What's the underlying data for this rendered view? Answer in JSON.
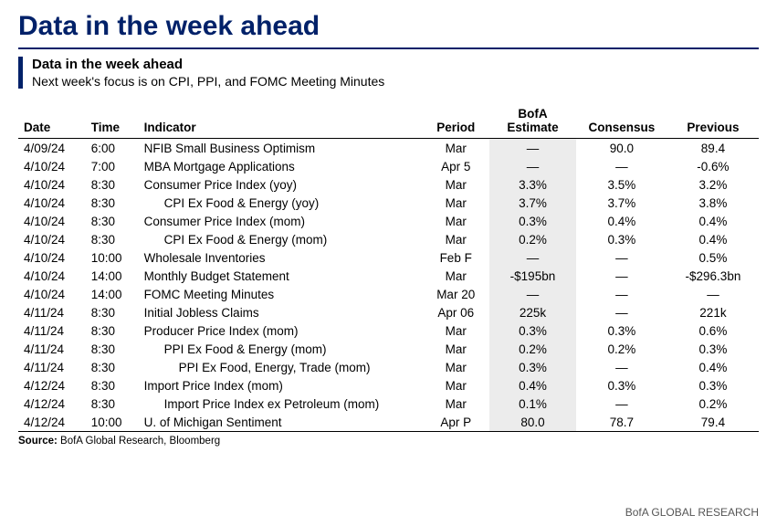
{
  "title": "Data in the week ahead",
  "subtitle": "Data in the week ahead",
  "tagline": "Next week's focus is on CPI, PPI, and FOMC Meeting Minutes",
  "columns": {
    "date": "Date",
    "time": "Time",
    "indicator": "Indicator",
    "period": "Period",
    "estimate_top": "BofA",
    "estimate_bot": "Estimate",
    "consensus": "Consensus",
    "previous": "Previous"
  },
  "rows": [
    {
      "date": "4/09/24",
      "time": "6:00",
      "indicator": "NFIB Small Business Optimism",
      "indent": 0,
      "period": "Mar",
      "estimate": "—",
      "consensus": "90.0",
      "previous": "89.4"
    },
    {
      "date": "4/10/24",
      "time": "7:00",
      "indicator": "MBA Mortgage Applications",
      "indent": 0,
      "period": "Apr 5",
      "estimate": "—",
      "consensus": "—",
      "previous": "-0.6%"
    },
    {
      "date": "4/10/24",
      "time": "8:30",
      "indicator": "Consumer Price Index (yoy)",
      "indent": 0,
      "period": "Mar",
      "estimate": "3.3%",
      "consensus": "3.5%",
      "previous": "3.2%"
    },
    {
      "date": "4/10/24",
      "time": "8:30",
      "indicator": "CPI Ex Food & Energy (yoy)",
      "indent": 1,
      "period": "Mar",
      "estimate": "3.7%",
      "consensus": "3.7%",
      "previous": "3.8%"
    },
    {
      "date": "4/10/24",
      "time": "8:30",
      "indicator": "Consumer Price Index (mom)",
      "indent": 0,
      "period": "Mar",
      "estimate": "0.3%",
      "consensus": "0.4%",
      "previous": "0.4%"
    },
    {
      "date": "4/10/24",
      "time": "8:30",
      "indicator": "CPI Ex Food & Energy (mom)",
      "indent": 1,
      "period": "Mar",
      "estimate": "0.2%",
      "consensus": "0.3%",
      "previous": "0.4%"
    },
    {
      "date": "4/10/24",
      "time": "10:00",
      "indicator": "Wholesale Inventories",
      "indent": 0,
      "period": "Feb F",
      "estimate": "—",
      "consensus": "—",
      "previous": "0.5%"
    },
    {
      "date": "4/10/24",
      "time": "14:00",
      "indicator": "Monthly Budget Statement",
      "indent": 0,
      "period": "Mar",
      "estimate": "-$195bn",
      "consensus": "—",
      "previous": "-$296.3bn"
    },
    {
      "date": "4/10/24",
      "time": "14:00",
      "indicator": "FOMC Meeting Minutes",
      "indent": 0,
      "period": "Mar 20",
      "estimate": "—",
      "consensus": "—",
      "previous": "—"
    },
    {
      "date": "4/11/24",
      "time": "8:30",
      "indicator": "Initial Jobless Claims",
      "indent": 0,
      "period": "Apr 06",
      "estimate": "225k",
      "consensus": "—",
      "previous": "221k"
    },
    {
      "date": "4/11/24",
      "time": "8:30",
      "indicator": "Producer Price Index (mom)",
      "indent": 0,
      "period": "Mar",
      "estimate": "0.3%",
      "consensus": "0.3%",
      "previous": "0.6%"
    },
    {
      "date": "4/11/24",
      "time": "8:30",
      "indicator": "PPI Ex Food & Energy (mom)",
      "indent": 1,
      "period": "Mar",
      "estimate": "0.2%",
      "consensus": "0.2%",
      "previous": "0.3%"
    },
    {
      "date": "4/11/24",
      "time": "8:30",
      "indicator": "PPI Ex Food, Energy, Trade (mom)",
      "indent": 2,
      "period": "Mar",
      "estimate": "0.3%",
      "consensus": "—",
      "previous": "0.4%"
    },
    {
      "date": "4/12/24",
      "time": "8:30",
      "indicator": "Import Price Index (mom)",
      "indent": 0,
      "period": "Mar",
      "estimate": "0.4%",
      "consensus": "0.3%",
      "previous": "0.3%"
    },
    {
      "date": "4/12/24",
      "time": "8:30",
      "indicator": "Import Price Index ex Petroleum (mom)",
      "indent": 1,
      "period": "Mar",
      "estimate": "0.1%",
      "consensus": "—",
      "previous": "0.2%"
    },
    {
      "date": "4/12/24",
      "time": "10:00",
      "indicator": "U. of Michigan Sentiment",
      "indent": 0,
      "period": "Apr P",
      "estimate": "80.0",
      "consensus": "78.7",
      "previous": "79.4"
    }
  ],
  "source_label": "Source:",
  "source_text": " BofA Global Research, Bloomberg",
  "footer_brand": "BofA GLOBAL RESEARCH",
  "colors": {
    "brand_blue": "#012169",
    "estimate_bg": "#ececec",
    "text": "#000000",
    "footer": "#555555",
    "bg": "#ffffff"
  }
}
